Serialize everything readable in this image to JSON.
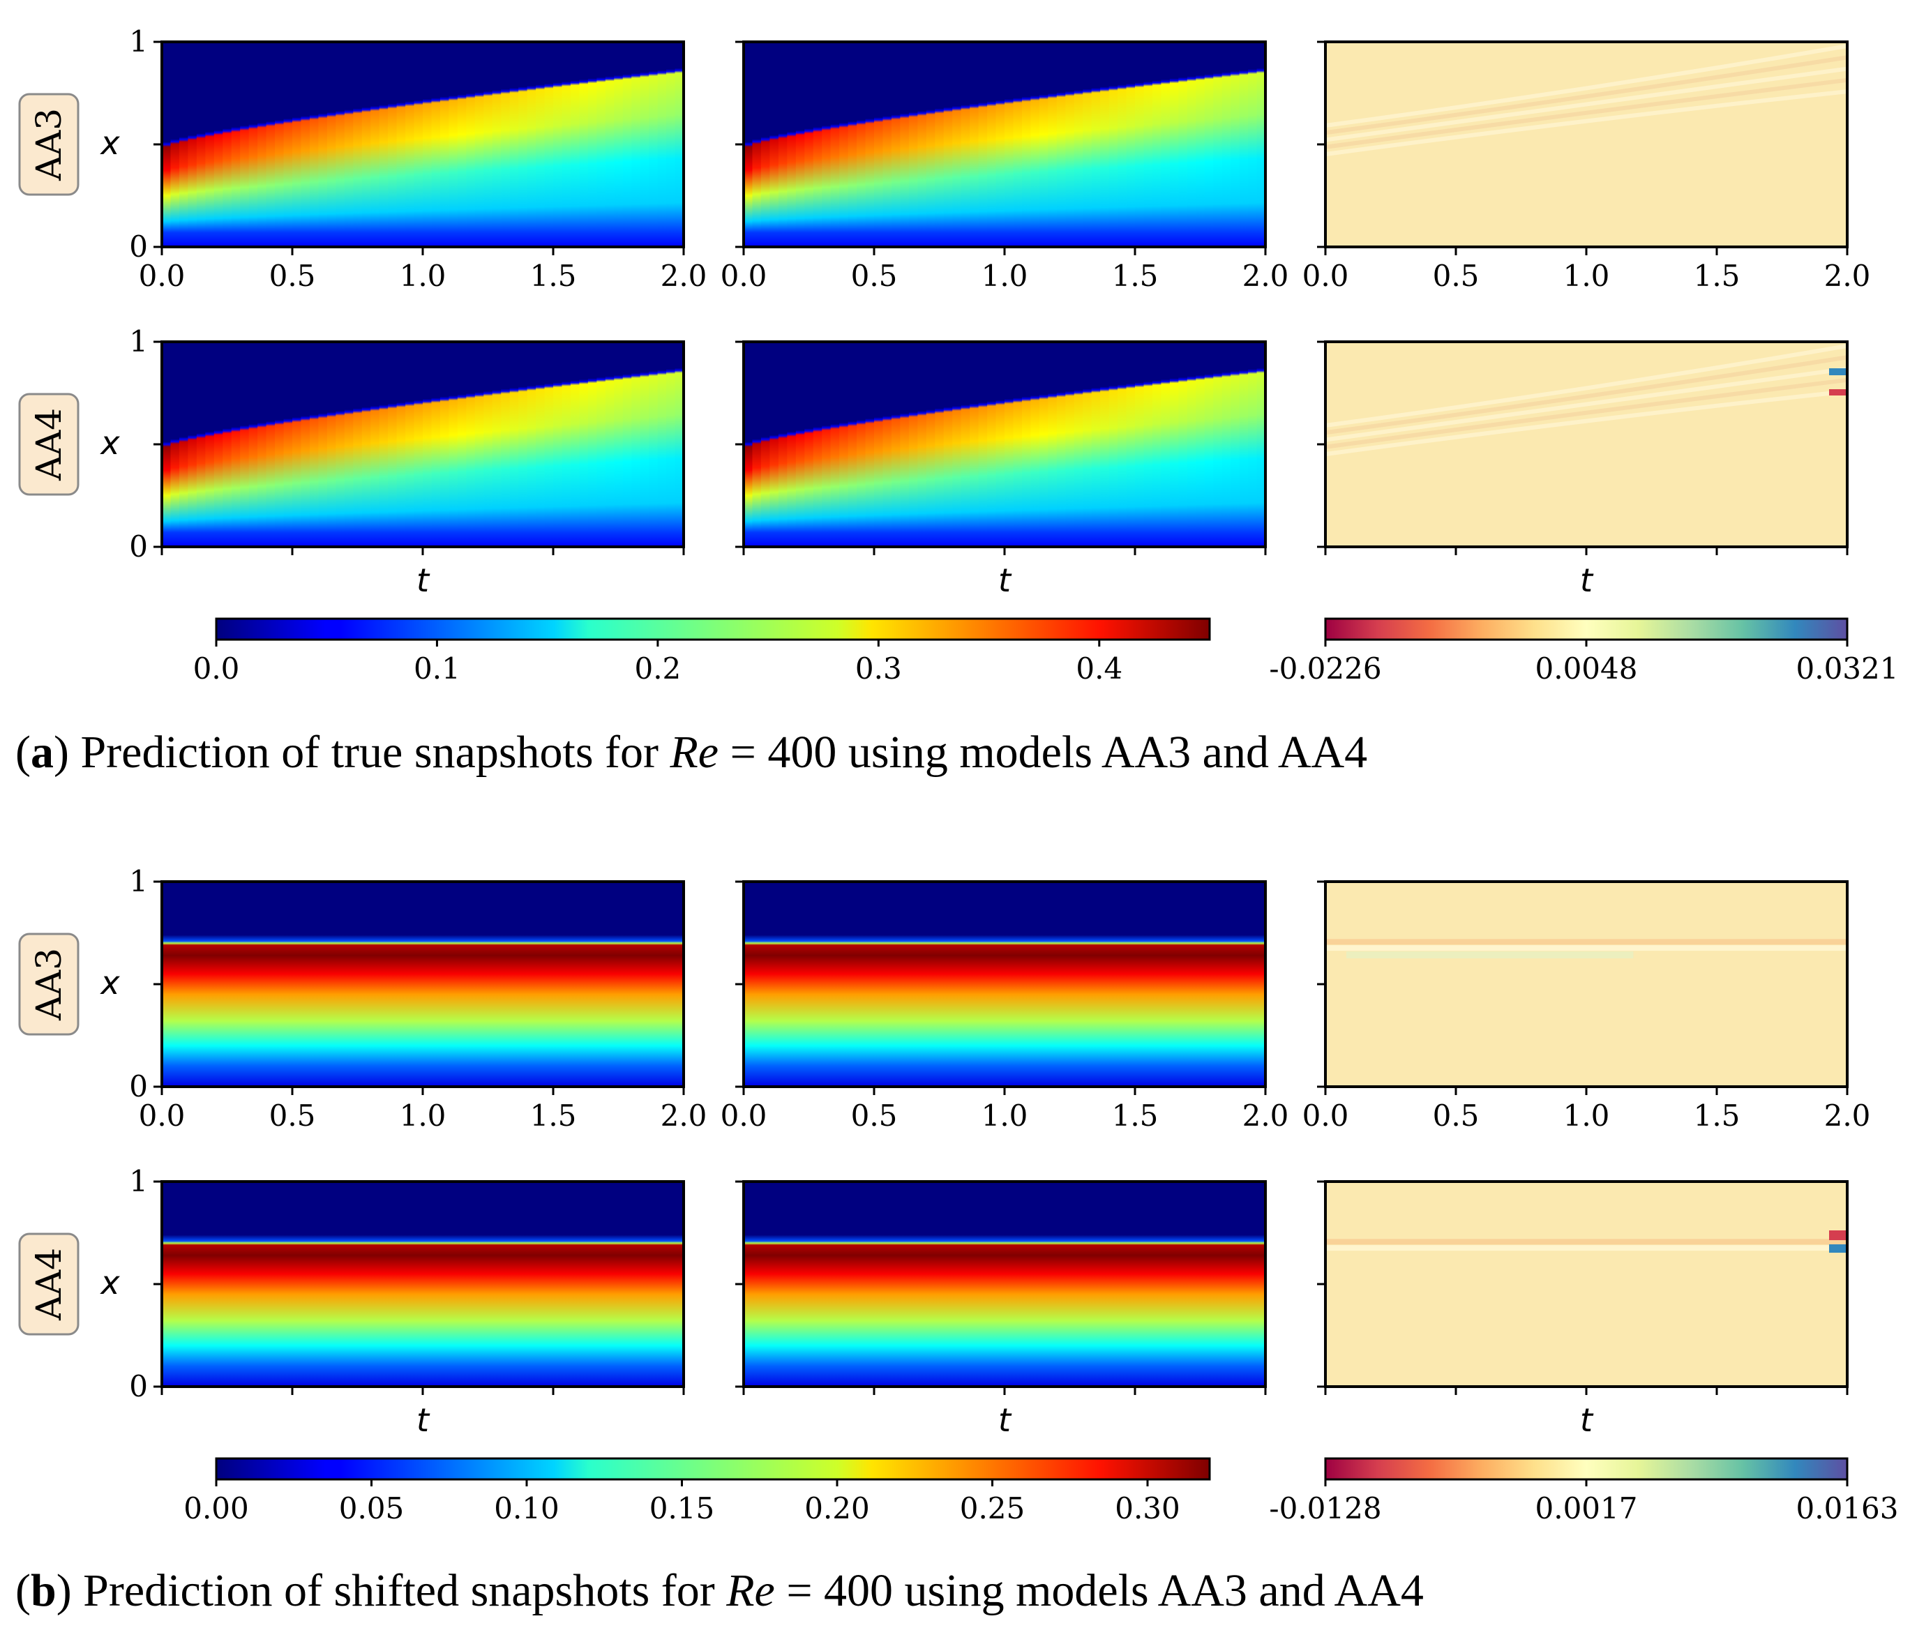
{
  "figure": {
    "parts": [
      {
        "caption_letter": "a",
        "caption_text": ") Prediction of true snapshots for ",
        "caption_re": "Re",
        "caption_tail": " = 400 using models AA3 and AA4",
        "mode": "true",
        "colorbar_main_ticks": [
          "0.0",
          "0.1",
          "0.2",
          "0.3",
          "0.4"
        ],
        "colorbar_main_range": [
          0.0,
          0.45
        ],
        "colorbar_err_ticks": [
          "-0.0226",
          "0.0048",
          "0.0321"
        ]
      },
      {
        "caption_letter": "b",
        "caption_text": ") Prediction of shifted snapshots for ",
        "caption_re": "Re",
        "caption_tail": " = 400 using models AA3 and AA4",
        "mode": "shifted",
        "colorbar_main_ticks": [
          "0.00",
          "0.05",
          "0.10",
          "0.15",
          "0.20",
          "0.25",
          "0.30"
        ],
        "colorbar_main_range": [
          0.0,
          0.32
        ],
        "colorbar_err_ticks": [
          "-0.0128",
          "0.0017",
          "0.0163"
        ]
      }
    ],
    "row_labels": [
      "AA3",
      "AA4"
    ],
    "x_axis_label": "t",
    "y_axis_label": "x",
    "x_ticks": [
      "0.0",
      "0.5",
      "1.0",
      "1.5",
      "2.0"
    ],
    "y_ticks": [
      "0",
      "1"
    ]
  },
  "chart_data": [
    {
      "type": "heatmap",
      "panel": "true snapshots, AA3 / AA4 (prediction)",
      "x": "t",
      "xlim": [
        0.0,
        2.0
      ],
      "y": "x",
      "ylim": [
        0,
        1
      ],
      "colormap": "jet",
      "colorbar_range": [
        0.0,
        0.45
      ],
      "front_position_x": {
        "t": [
          0.0,
          0.5,
          1.0,
          1.5,
          2.0
        ],
        "x": [
          0.5,
          0.62,
          0.7,
          0.78,
          0.86
        ]
      },
      "peak_value_at_front_t0": 0.45
    },
    {
      "type": "heatmap",
      "panel": "true snapshots error, AA3 / AA4",
      "colormap": "Spectral",
      "colorbar_ticks": [
        -0.0226,
        0.0048,
        0.0321
      ]
    },
    {
      "type": "heatmap",
      "panel": "shifted snapshots, AA3 / AA4 (prediction)",
      "x": "t",
      "xlim": [
        0.0,
        2.0
      ],
      "y": "x",
      "ylim": [
        0,
        1
      ],
      "colormap": "jet",
      "colorbar_range": [
        0.0,
        0.32
      ],
      "front_position_x": 0.7
    },
    {
      "type": "heatmap",
      "panel": "shifted snapshots error, AA3 / AA4",
      "colormap": "Spectral",
      "colorbar_ticks": [
        -0.0128,
        0.0017,
        0.0163
      ]
    }
  ]
}
